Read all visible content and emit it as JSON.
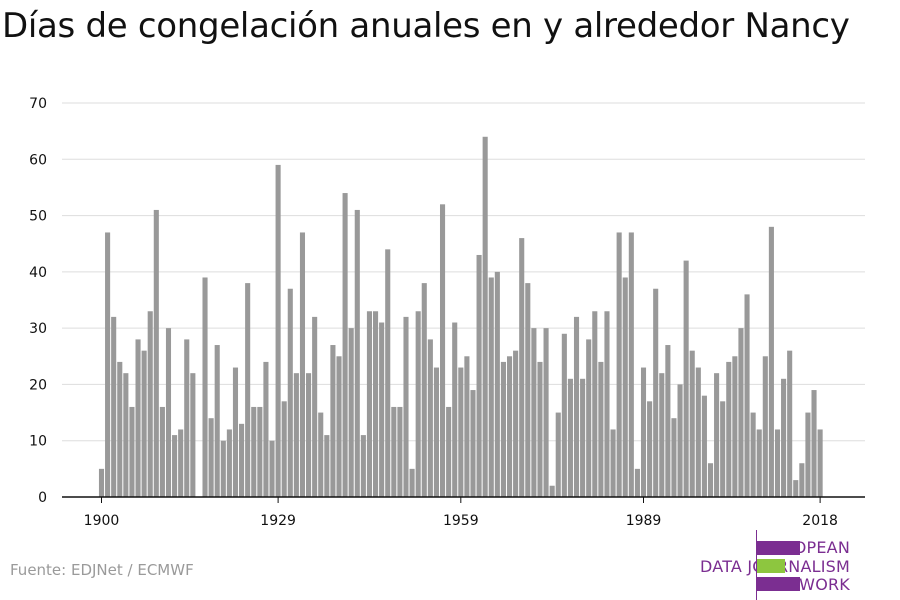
{
  "title": "Días de congelación anuales en y alrededor Nancy",
  "source": "Fuente: EDJNet / ECMWF",
  "logo": {
    "lines": [
      "EUROPEAN",
      "DATA JOURNALISM",
      "NETWORK"
    ],
    "colors": {
      "purple": "#7b2e91",
      "green": "#8dc63f"
    }
  },
  "chart_data": {
    "type": "bar",
    "title": "Días de congelación anuales en y alrededor Nancy",
    "xlabel": "",
    "ylabel": "",
    "x_ticks": [
      1900,
      1929,
      1959,
      1989,
      2018
    ],
    "y_ticks": [
      0,
      10,
      20,
      30,
      40,
      50,
      60,
      70
    ],
    "ylim": [
      0,
      70
    ],
    "xlim": [
      1899,
      2019
    ],
    "grid": true,
    "bar_color": "#999999",
    "years": [
      1900,
      1901,
      1902,
      1903,
      1904,
      1905,
      1906,
      1907,
      1908,
      1909,
      1910,
      1911,
      1912,
      1913,
      1914,
      1915,
      1916,
      1917,
      1918,
      1919,
      1920,
      1921,
      1922,
      1923,
      1924,
      1925,
      1926,
      1927,
      1928,
      1929,
      1930,
      1931,
      1932,
      1933,
      1934,
      1935,
      1936,
      1937,
      1938,
      1939,
      1940,
      1941,
      1942,
      1943,
      1944,
      1945,
      1946,
      1947,
      1948,
      1949,
      1950,
      1951,
      1952,
      1953,
      1954,
      1955,
      1956,
      1957,
      1958,
      1959,
      1960,
      1961,
      1962,
      1963,
      1964,
      1965,
      1966,
      1967,
      1968,
      1969,
      1970,
      1971,
      1972,
      1973,
      1974,
      1975,
      1976,
      1977,
      1978,
      1979,
      1980,
      1981,
      1982,
      1983,
      1984,
      1985,
      1986,
      1987,
      1988,
      1989,
      1990,
      1991,
      1992,
      1993,
      1994,
      1995,
      1996,
      1997,
      1998,
      1999,
      2000,
      2001,
      2002,
      2003,
      2004,
      2005,
      2006,
      2007,
      2008,
      2009,
      2010,
      2011,
      2012,
      2013,
      2014,
      2015,
      2016,
      2017,
      2018
    ],
    "values": [
      5,
      47,
      32,
      24,
      22,
      16,
      28,
      26,
      33,
      51,
      16,
      30,
      11,
      12,
      28,
      22,
      0,
      39,
      14,
      27,
      10,
      12,
      23,
      13,
      38,
      16,
      16,
      24,
      10,
      59,
      17,
      37,
      22,
      47,
      22,
      32,
      15,
      11,
      27,
      25,
      54,
      30,
      51,
      11,
      33,
      33,
      31,
      44,
      16,
      16,
      32,
      5,
      33,
      38,
      28,
      23,
      52,
      16,
      31,
      23,
      25,
      19,
      43,
      64,
      39,
      40,
      24,
      25,
      26,
      46,
      38,
      30,
      24,
      30,
      2,
      15,
      29,
      21,
      32,
      21,
      28,
      33,
      24,
      33,
      12,
      47,
      39,
      47,
      5,
      23,
      17,
      37,
      22,
      27,
      14,
      20,
      42,
      26,
      23,
      18,
      6,
      22,
      17,
      24,
      25,
      30,
      36,
      15,
      12,
      25,
      48,
      12,
      21,
      26,
      3,
      6,
      15,
      19,
      12
    ]
  }
}
